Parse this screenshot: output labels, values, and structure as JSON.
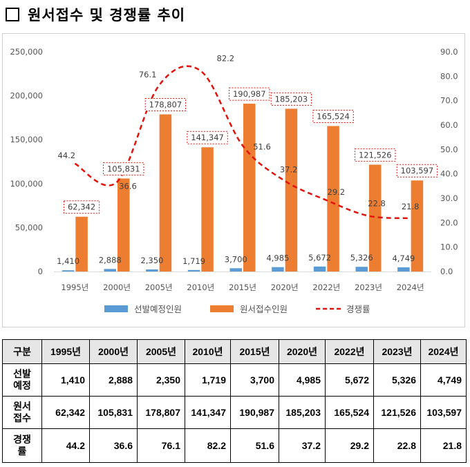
{
  "title": "원서접수 및 경쟁률 추이",
  "colors": {
    "bar1": "#5b9bd5",
    "bar2": "#ed7d31",
    "line": "#e3120b",
    "label_box": "#e3120b"
  },
  "chart_data": {
    "type": "bar",
    "categories": [
      "1995년",
      "2000년",
      "2005년",
      "2010년",
      "2015년",
      "2020년",
      "2022년",
      "2023년",
      "2024년"
    ],
    "series": [
      {
        "name": "선발예정인원",
        "type": "bar",
        "axis": "left",
        "values": [
          1410,
          2888,
          2350,
          1719,
          3700,
          4985,
          5672,
          5326,
          4749
        ],
        "labels": [
          "1,410",
          "2,888",
          "2,350",
          "1,719",
          "3,700",
          "4,985",
          "5,672",
          "5,326",
          "4,749"
        ]
      },
      {
        "name": "원서접수인원",
        "type": "bar",
        "axis": "left",
        "values": [
          62342,
          105831,
          178807,
          141347,
          190987,
          185203,
          165524,
          121526,
          103597
        ],
        "labels": [
          "62,342",
          "105,831",
          "178,807",
          "141,347",
          "190,987",
          "185,203",
          "165,524",
          "121,526",
          "103,597"
        ]
      },
      {
        "name": "경쟁률",
        "type": "line",
        "style": "dashed",
        "axis": "right",
        "values": [
          44.2,
          36.6,
          76.1,
          82.2,
          51.6,
          37.2,
          29.2,
          22.8,
          21.8
        ],
        "labels": [
          "44.2",
          "36.6",
          "76.1",
          "82.2",
          "51.6",
          "37.2",
          "29.2",
          "22.8",
          "21.8"
        ]
      }
    ],
    "y_left": {
      "min": 0,
      "max": 250000,
      "ticks": [
        "0",
        "50,000",
        "100,000",
        "150,000",
        "200,000",
        "250,000"
      ]
    },
    "y_right": {
      "min": 0,
      "max": 90,
      "ticks": [
        "0.0",
        "10.0",
        "20.0",
        "30.0",
        "40.0",
        "50.0",
        "60.0",
        "70.0",
        "80.0",
        "90.0"
      ]
    },
    "legend": "bottom",
    "grid": false
  },
  "table": {
    "header": [
      "구분",
      "1995년",
      "2000년",
      "2005년",
      "2010년",
      "2015년",
      "2020년",
      "2022년",
      "2023년",
      "2024년"
    ],
    "rows": [
      {
        "label": [
          "선발",
          "예정"
        ],
        "cells": [
          "1,410",
          "2,888",
          "2,350",
          "1,719",
          "3,700",
          "4,985",
          "5,672",
          "5,326",
          "4,749"
        ]
      },
      {
        "label": [
          "원서",
          "접수"
        ],
        "cells": [
          "62,342",
          "105,831",
          "178,807",
          "141,347",
          "190,987",
          "185,203",
          "165,524",
          "121,526",
          "103,597"
        ]
      },
      {
        "label": [
          "경쟁",
          "률"
        ],
        "cells": [
          "44.2",
          "36.6",
          "76.1",
          "82.2",
          "51.6",
          "37.2",
          "29.2",
          "22.8",
          "21.8"
        ]
      }
    ]
  }
}
